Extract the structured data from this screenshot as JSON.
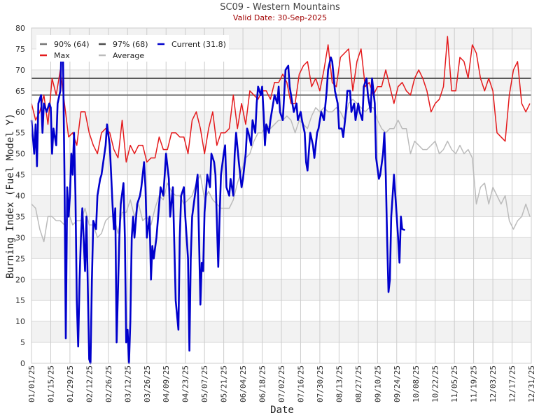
{
  "chart_data": {
    "type": "line",
    "title": "SC09 - Western Mountains",
    "subtitle": "Valid Date: 30-Sep-2025",
    "xlabel": "Date",
    "ylabel": "Burning Index (Fuel Model Y)",
    "ylim": [
      0,
      80
    ],
    "yticks": [
      0,
      5,
      10,
      15,
      20,
      25,
      30,
      35,
      40,
      45,
      50,
      55,
      60,
      65,
      70,
      75,
      80
    ],
    "xlim_days": [
      0,
      364
    ],
    "xtick_labels": [
      "01/01/25",
      "01/15/25",
      "01/29/25",
      "02/12/25",
      "02/26/25",
      "03/12/25",
      "03/26/25",
      "04/09/25",
      "04/23/25",
      "05/07/25",
      "05/21/25",
      "06/04/25",
      "06/18/25",
      "07/02/25",
      "07/16/25",
      "07/30/25",
      "08/13/25",
      "08/27/25",
      "09/10/25",
      "09/24/25",
      "10/08/25",
      "10/22/25",
      "11/05/25",
      "11/19/25",
      "12/03/25",
      "12/17/25",
      "12/31/25"
    ],
    "xtick_step_days": 14,
    "grid": true,
    "legend_placement": "top-left",
    "thresholds": [
      {
        "name": "90% (64)",
        "value": 64,
        "color": "#777777"
      },
      {
        "name": "97% (68)",
        "value": 68,
        "color": "#4d4d4d"
      }
    ],
    "series": [
      {
        "name": "Current (31.8)",
        "color": "#0000cc",
        "x_unit": "day_of_year",
        "points": [
          [
            0,
            58
          ],
          [
            2,
            50
          ],
          [
            3,
            57
          ],
          [
            4,
            47
          ],
          [
            5,
            62
          ],
          [
            7,
            64
          ],
          [
            8,
            55
          ],
          [
            9,
            62
          ],
          [
            11,
            60
          ],
          [
            13,
            62
          ],
          [
            14,
            61
          ],
          [
            15,
            50
          ],
          [
            16,
            56
          ],
          [
            18,
            52
          ],
          [
            19,
            62
          ],
          [
            21,
            65
          ],
          [
            22,
            78
          ],
          [
            23,
            72
          ],
          [
            24,
            45
          ],
          [
            25,
            6
          ],
          [
            26,
            42
          ],
          [
            27,
            35
          ],
          [
            28,
            40
          ],
          [
            29,
            50
          ],
          [
            30,
            45
          ],
          [
            31,
            55
          ],
          [
            32,
            40
          ],
          [
            33,
            15
          ],
          [
            34,
            4
          ],
          [
            35,
            20
          ],
          [
            36,
            30
          ],
          [
            37,
            37
          ],
          [
            39,
            22
          ],
          [
            40,
            35
          ],
          [
            42,
            1
          ],
          [
            43,
            0
          ],
          [
            44,
            20
          ],
          [
            45,
            34
          ],
          [
            47,
            32
          ],
          [
            48,
            40
          ],
          [
            50,
            44
          ],
          [
            51,
            45
          ],
          [
            54,
            52
          ],
          [
            55,
            57
          ],
          [
            57,
            52
          ],
          [
            58,
            45
          ],
          [
            59,
            38
          ],
          [
            60,
            32
          ],
          [
            61,
            37
          ],
          [
            62,
            5
          ],
          [
            64,
            30
          ],
          [
            65,
            38
          ],
          [
            67,
            43
          ],
          [
            68,
            30
          ],
          [
            69,
            5
          ],
          [
            70,
            8
          ],
          [
            71,
            0
          ],
          [
            72,
            10
          ],
          [
            73,
            30
          ],
          [
            74,
            35
          ],
          [
            75,
            30
          ],
          [
            77,
            38
          ],
          [
            79,
            40
          ],
          [
            80,
            42
          ],
          [
            82,
            48
          ],
          [
            83,
            42
          ],
          [
            84,
            30
          ],
          [
            86,
            35
          ],
          [
            87,
            20
          ],
          [
            88,
            28
          ],
          [
            89,
            25
          ],
          [
            91,
            30
          ],
          [
            93,
            38
          ],
          [
            94,
            42
          ],
          [
            96,
            40
          ],
          [
            97,
            45
          ],
          [
            98,
            50
          ],
          [
            100,
            44
          ],
          [
            101,
            35
          ],
          [
            103,
            42
          ],
          [
            105,
            15
          ],
          [
            107,
            8
          ],
          [
            108,
            30
          ],
          [
            109,
            40
          ],
          [
            111,
            42
          ],
          [
            112,
            35
          ],
          [
            114,
            25
          ],
          [
            115,
            3
          ],
          [
            116,
            25
          ],
          [
            117,
            35
          ],
          [
            119,
            40
          ],
          [
            121,
            45
          ],
          [
            122,
            30
          ],
          [
            123,
            14
          ],
          [
            124,
            24
          ],
          [
            125,
            22
          ],
          [
            126,
            36
          ],
          [
            128,
            45
          ],
          [
            130,
            42
          ],
          [
            131,
            50
          ],
          [
            133,
            48
          ],
          [
            134,
            45
          ],
          [
            136,
            23
          ],
          [
            137,
            35
          ],
          [
            138,
            45
          ],
          [
            140,
            50
          ],
          [
            141,
            52
          ],
          [
            142,
            42
          ],
          [
            144,
            40
          ],
          [
            145,
            44
          ],
          [
            147,
            40
          ],
          [
            148,
            50
          ],
          [
            149,
            55
          ],
          [
            151,
            48
          ],
          [
            153,
            42
          ],
          [
            154,
            44
          ],
          [
            156,
            50
          ],
          [
            157,
            56
          ],
          [
            158,
            55
          ],
          [
            160,
            52
          ],
          [
            161,
            58
          ],
          [
            163,
            55
          ],
          [
            164,
            62
          ],
          [
            165,
            66
          ],
          [
            167,
            64
          ],
          [
            168,
            66
          ],
          [
            169,
            60
          ],
          [
            170,
            52
          ],
          [
            171,
            57
          ],
          [
            173,
            55
          ],
          [
            174,
            58
          ],
          [
            176,
            62
          ],
          [
            177,
            64
          ],
          [
            179,
            62
          ],
          [
            180,
            66
          ],
          [
            181,
            60
          ],
          [
            183,
            58
          ],
          [
            185,
            70
          ],
          [
            187,
            71
          ],
          [
            188,
            66
          ],
          [
            190,
            62
          ],
          [
            191,
            60
          ],
          [
            193,
            62
          ],
          [
            194,
            58
          ],
          [
            196,
            60
          ],
          [
            197,
            58
          ],
          [
            199,
            55
          ],
          [
            200,
            48
          ],
          [
            201,
            46
          ],
          [
            203,
            55
          ],
          [
            205,
            52
          ],
          [
            206,
            49
          ],
          [
            208,
            55
          ],
          [
            209,
            56
          ],
          [
            211,
            60
          ],
          [
            213,
            58
          ],
          [
            215,
            65
          ],
          [
            216,
            70
          ],
          [
            218,
            73
          ],
          [
            219,
            72
          ],
          [
            221,
            65
          ],
          [
            223,
            62
          ],
          [
            224,
            56
          ],
          [
            226,
            56
          ],
          [
            227,
            54
          ],
          [
            229,
            60
          ],
          [
            230,
            65
          ],
          [
            232,
            65
          ],
          [
            233,
            60
          ],
          [
            235,
            62
          ],
          [
            236,
            58
          ],
          [
            238,
            62
          ],
          [
            239,
            60
          ],
          [
            241,
            58
          ],
          [
            242,
            66
          ],
          [
            244,
            68
          ],
          [
            245,
            64
          ],
          [
            247,
            60
          ],
          [
            248,
            68
          ],
          [
            250,
            62
          ],
          [
            251,
            49
          ],
          [
            253,
            44
          ],
          [
            254,
            45
          ],
          [
            256,
            50
          ],
          [
            257,
            55
          ],
          [
            258,
            45
          ],
          [
            259,
            30
          ],
          [
            260,
            17
          ],
          [
            261,
            20
          ],
          [
            262,
            35
          ],
          [
            263,
            40
          ],
          [
            264,
            45
          ],
          [
            265,
            40
          ],
          [
            266,
            35
          ],
          [
            267,
            30
          ],
          [
            268,
            24
          ],
          [
            269,
            35
          ],
          [
            270,
            32
          ],
          [
            272,
            31.8
          ]
        ]
      },
      {
        "name": "Max",
        "color": "#e41a1c",
        "x_unit": "day_of_year",
        "step_days": 3,
        "values": [
          62,
          58,
          60,
          64,
          57,
          68,
          64,
          70,
          62,
          54,
          55,
          52,
          60,
          60,
          55,
          52,
          50,
          55,
          56,
          55,
          51,
          49,
          58,
          48,
          52,
          50,
          52,
          52,
          48,
          49,
          49,
          54,
          51,
          51,
          55,
          55,
          54,
          54,
          50,
          58,
          60,
          56,
          50,
          56,
          60,
          52,
          55,
          55,
          56,
          64,
          56,
          62,
          57,
          65,
          64,
          63,
          65,
          65,
          63,
          67,
          67,
          69,
          67,
          62,
          62,
          69,
          71,
          72,
          66,
          68,
          65,
          70,
          76,
          67,
          66,
          73,
          74,
          75,
          65,
          72,
          75,
          66,
          67,
          64,
          66,
          66,
          70,
          66,
          62,
          66,
          67,
          65,
          64,
          68,
          70,
          68,
          65,
          60,
          62,
          63,
          66,
          78,
          65,
          65,
          73,
          72,
          68,
          76,
          74,
          68,
          65,
          68,
          65,
          55,
          54,
          53,
          64,
          70,
          72,
          62,
          60,
          62
        ]
      },
      {
        "name": "Average",
        "color": "#bbbbbb",
        "x_unit": "day_of_year",
        "step_days": 3,
        "values": [
          38,
          37,
          32,
          29,
          35,
          35,
          34,
          34,
          33,
          36,
          33,
          34,
          34,
          37,
          33,
          33,
          30,
          31,
          34,
          35,
          35,
          31,
          36,
          36,
          39,
          35,
          38,
          34,
          35,
          33,
          37,
          40,
          39,
          43,
          41,
          40,
          40,
          38,
          39,
          40,
          43,
          45,
          39,
          41,
          39,
          38,
          37,
          37,
          37,
          39,
          43,
          46,
          49,
          50,
          53,
          55,
          55,
          57,
          56,
          57,
          58,
          58,
          59,
          58,
          55,
          58,
          57,
          56,
          59,
          61,
          60,
          61,
          60,
          60,
          61,
          60,
          58,
          62,
          63,
          62,
          61,
          60,
          61,
          61,
          58,
          56,
          55,
          56,
          56,
          58,
          56,
          56,
          50,
          53,
          52,
          51,
          51,
          52,
          53,
          50,
          51,
          53,
          51,
          50,
          52,
          50,
          51,
          49,
          38,
          42,
          43,
          38,
          42,
          40,
          38,
          40,
          34,
          32,
          34,
          35,
          38,
          35
        ]
      }
    ]
  }
}
